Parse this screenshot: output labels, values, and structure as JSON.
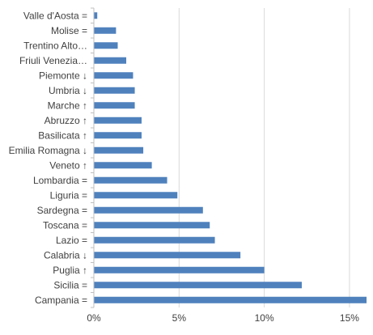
{
  "chart_data": {
    "type": "bar",
    "orientation": "horizontal",
    "categories": [
      "Valle d'Aosta =",
      "Molise =",
      "Trentino Alto…",
      "Friuli Venezia…",
      "Piemonte ↓",
      "Umbria ↓",
      "Marche ↑",
      "Abruzzo ↑",
      "Basilicata ↑",
      "Emilia Romagna ↓",
      "Veneto ↑",
      "Lombardia =",
      "Liguria =",
      "Sardegna =",
      "Toscana =",
      "Lazio =",
      "Calabria ↓",
      "Puglia ↑",
      "Sicilia =",
      "Campania ="
    ],
    "values": [
      0.2,
      1.3,
      1.4,
      1.9,
      2.3,
      2.4,
      2.4,
      2.8,
      2.8,
      2.9,
      3.4,
      4.3,
      4.9,
      6.4,
      6.8,
      7.1,
      8.6,
      10.0,
      12.2,
      16.0
    ],
    "xlim": [
      0,
      16
    ],
    "xticks": [
      "0%",
      "5%",
      "10%",
      "15%"
    ],
    "xtick_values": [
      0,
      5,
      10,
      15
    ],
    "title": "",
    "xlabel": "",
    "ylabel": "",
    "grid": "vertical",
    "legend": "none",
    "bar_color": "#4f81bd",
    "grid_color": "#d9d9d9",
    "axis_color": "#bfbfbf"
  }
}
